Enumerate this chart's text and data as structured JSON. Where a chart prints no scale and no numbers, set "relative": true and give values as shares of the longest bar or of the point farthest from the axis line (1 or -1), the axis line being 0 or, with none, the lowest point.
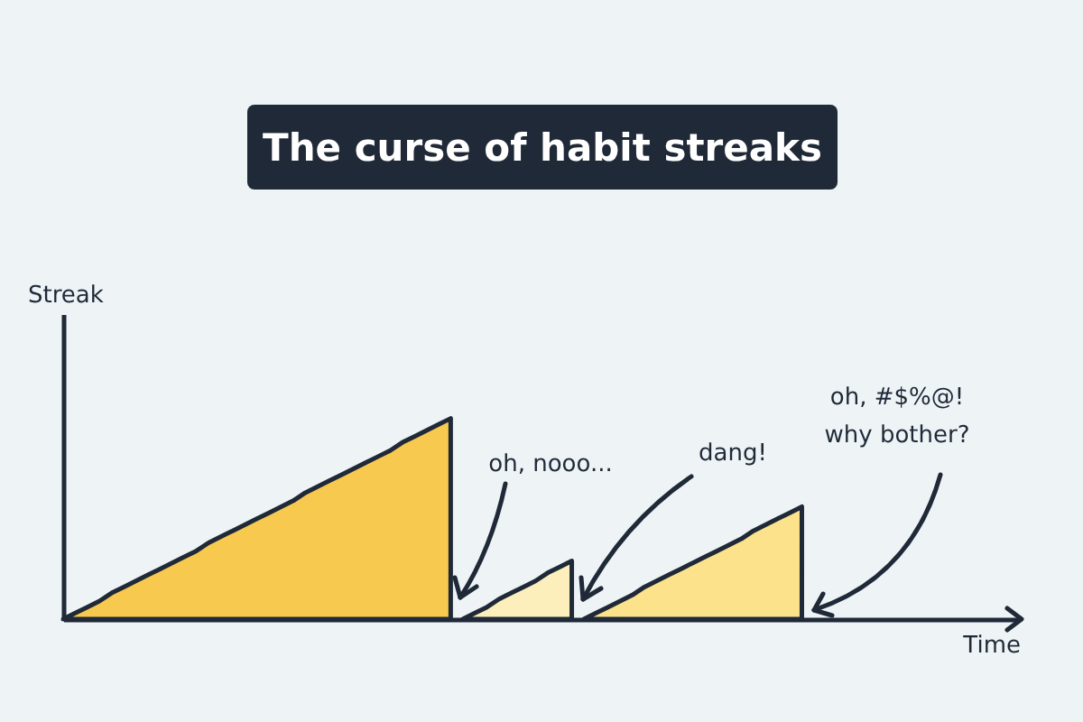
{
  "chart_data": {
    "type": "area",
    "title": "The curse of habit streaks",
    "xlabel": "Time",
    "ylabel": "Streak",
    "relative": true,
    "grid": false,
    "categories": [
      null,
      null,
      null,
      null,
      null,
      null,
      null,
      null,
      null,
      null,
      null,
      null,
      null,
      null,
      null,
      null,
      null,
      null,
      null,
      null,
      null,
      null,
      null,
      null,
      null,
      null,
      null,
      null,
      null,
      null,
      null,
      null,
      null,
      null,
      null,
      null,
      null,
      null,
      null,
      null,
      null,
      null,
      null,
      null,
      null,
      null,
      null,
      null,
      null,
      null,
      null,
      null,
      null,
      null,
      null,
      null,
      null,
      null,
      null,
      null,
      null,
      null,
      null,
      null,
      null,
      null,
      null,
      null,
      null,
      null,
      null,
      null,
      null,
      null,
      null,
      null,
      null,
      null,
      null,
      null
    ],
    "series": [
      {
        "color": "#f8c94f",
        "values": [
          0,
          0.03,
          0.06,
          0.09,
          0.13,
          0.16,
          0.19,
          0.22,
          0.25,
          0.28,
          0.31,
          0.34,
          0.38,
          0.41,
          0.44,
          0.47,
          0.5,
          0.53,
          0.56,
          0.59,
          0.63,
          0.66,
          0.69,
          0.72,
          0.75,
          0.78,
          0.81,
          0.84,
          0.88,
          0.91,
          0.94,
          0.97,
          1,
          null,
          null,
          null,
          null,
          null,
          null,
          null,
          null,
          null,
          null,
          null,
          null,
          null,
          null,
          null,
          null,
          null,
          null,
          null,
          null,
          null,
          null,
          null,
          null,
          null,
          null,
          null,
          null,
          null,
          null,
          null,
          null,
          null,
          null,
          null,
          null,
          null,
          null,
          null,
          null,
          null,
          null,
          null,
          null,
          null,
          null,
          null
        ]
      },
      {
        "color": "#fcefbc",
        "values": [
          null,
          null,
          null,
          null,
          null,
          null,
          null,
          null,
          null,
          null,
          null,
          null,
          null,
          null,
          null,
          null,
          null,
          null,
          null,
          null,
          null,
          null,
          null,
          null,
          null,
          null,
          null,
          null,
          null,
          null,
          null,
          null,
          null,
          0,
          0.03,
          0.06,
          0.1,
          0.13,
          0.16,
          0.19,
          0.23,
          0.26,
          0.29,
          null,
          null,
          null,
          null,
          null,
          null,
          null,
          null,
          null,
          null,
          null,
          null,
          null,
          null,
          null,
          null,
          null,
          null,
          null,
          null,
          null,
          null,
          null,
          null,
          null,
          null,
          null,
          null,
          null,
          null,
          null,
          null,
          null,
          null,
          null,
          null,
          null
        ]
      },
      {
        "color": "#fde28c",
        "values": [
          null,
          null,
          null,
          null,
          null,
          null,
          null,
          null,
          null,
          null,
          null,
          null,
          null,
          null,
          null,
          null,
          null,
          null,
          null,
          null,
          null,
          null,
          null,
          null,
          null,
          null,
          null,
          null,
          null,
          null,
          null,
          null,
          null,
          null,
          null,
          null,
          null,
          null,
          null,
          null,
          null,
          null,
          null,
          0,
          0.03,
          0.06,
          0.09,
          0.12,
          0.16,
          0.19,
          0.22,
          0.25,
          0.28,
          0.31,
          0.34,
          0.37,
          0.4,
          0.44,
          0.47,
          0.5,
          0.53,
          0.56,
          null,
          null,
          null,
          null,
          null,
          null,
          null,
          null,
          null,
          null,
          null,
          null,
          null,
          null,
          null,
          null,
          null,
          null
        ]
      }
    ],
    "annotations": [
      "oh, nooo...",
      "dang!",
      "oh, #$%@!\nwhy bother?"
    ]
  }
}
